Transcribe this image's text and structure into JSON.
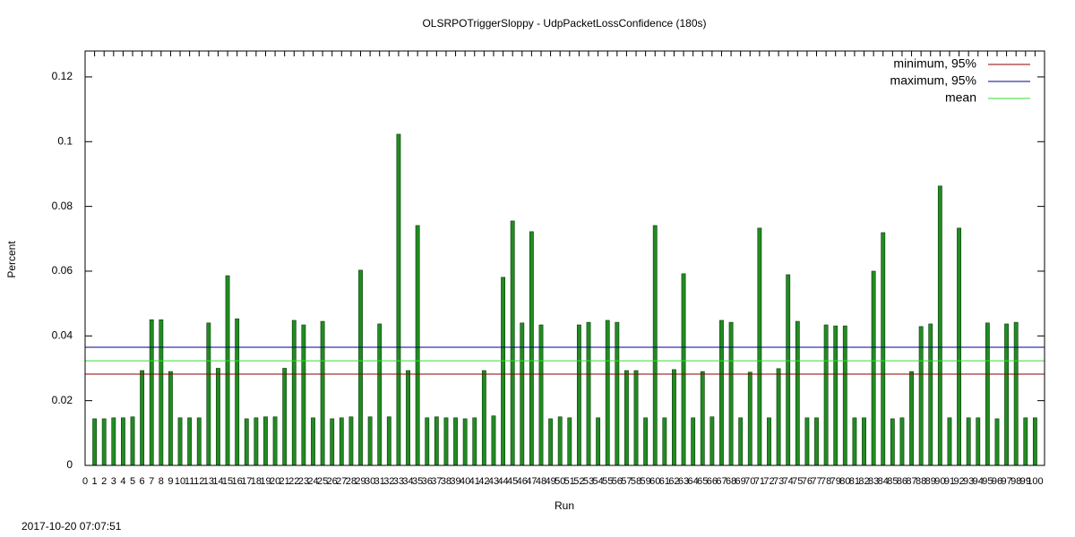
{
  "chart_data": {
    "type": "bar",
    "title": "OLSRPOTriggerSloppy - UdpPacketLossConfidence (180s)",
    "xlabel": "Run",
    "ylabel": "Percent",
    "footer": "2017-10-20 07:07:51",
    "color": "#228b22",
    "edgecolor": "#0b3d0b",
    "x": [
      1,
      2,
      3,
      4,
      5,
      6,
      7,
      8,
      9,
      10,
      11,
      12,
      13,
      14,
      15,
      16,
      17,
      18,
      19,
      20,
      21,
      22,
      23,
      24,
      25,
      26,
      27,
      28,
      29,
      30,
      31,
      32,
      33,
      34,
      35,
      36,
      37,
      38,
      39,
      40,
      41,
      42,
      43,
      44,
      45,
      46,
      47,
      48,
      49,
      50,
      51,
      52,
      53,
      54,
      55,
      56,
      57,
      58,
      59,
      60,
      61,
      62,
      63,
      64,
      65,
      66,
      67,
      68,
      69,
      70,
      71,
      72,
      73,
      74,
      75,
      76,
      77,
      78,
      79,
      80,
      81,
      82,
      83,
      84,
      85,
      86,
      87,
      88,
      89,
      90,
      91,
      92,
      93,
      94,
      95,
      96,
      97,
      98,
      99,
      100
    ],
    "values": [
      0.0144,
      0.0144,
      0.0147,
      0.0147,
      0.015,
      0.0293,
      0.045,
      0.045,
      0.029,
      0.0147,
      0.0147,
      0.0147,
      0.044,
      0.03,
      0.0586,
      0.0453,
      0.0144,
      0.0147,
      0.015,
      0.015,
      0.03,
      0.0448,
      0.0434,
      0.0147,
      0.0445,
      0.0144,
      0.0147,
      0.015,
      0.0603,
      0.015,
      0.0437,
      0.015,
      0.1023,
      0.0293,
      0.0741,
      0.0147,
      0.015,
      0.0147,
      0.0147,
      0.0144,
      0.0147,
      0.0293,
      0.0153,
      0.0581,
      0.0755,
      0.044,
      0.0722,
      0.0434,
      0.0144,
      0.015,
      0.0147,
      0.0434,
      0.0442,
      0.0147,
      0.0448,
      0.0442,
      0.0293,
      0.0293,
      0.0147,
      0.0741,
      0.0147,
      0.0296,
      0.0592,
      0.0147,
      0.029,
      0.015,
      0.0448,
      0.0442,
      0.0147,
      0.0288,
      0.0733,
      0.0147,
      0.0299,
      0.0589,
      0.0445,
      0.0147,
      0.0147,
      0.0434,
      0.0431,
      0.0431,
      0.0147,
      0.0147,
      0.06,
      0.0719,
      0.0144,
      0.0147,
      0.029,
      0.0429,
      0.0437,
      0.0863,
      0.0147,
      0.0733,
      0.0147,
      0.0147,
      0.044,
      0.0144,
      0.0437,
      0.0442,
      0.0147,
      0.0147
    ],
    "lines": [
      {
        "name": "minimum, 95%",
        "color": "#8b0000",
        "value": 0.0282
      },
      {
        "name": "maximum, 95%",
        "color": "#00008b",
        "value": 0.0365
      },
      {
        "name": "mean",
        "color": "#33dd33",
        "value": 0.0323
      }
    ],
    "legend": "upper right",
    "xlim": [
      0,
      101
    ],
    "ylim": [
      0,
      0.128
    ],
    "xticks": [
      0,
      1,
      2,
      3,
      4,
      5,
      6,
      7,
      8,
      9,
      10,
      11,
      12,
      13,
      14,
      15,
      16,
      17,
      18,
      19,
      20,
      21,
      22,
      23,
      24,
      25,
      26,
      27,
      28,
      29,
      30,
      31,
      32,
      33,
      34,
      35,
      36,
      37,
      38,
      39,
      40,
      41,
      42,
      43,
      44,
      45,
      46,
      47,
      48,
      49,
      50,
      51,
      52,
      53,
      54,
      55,
      56,
      57,
      58,
      59,
      60,
      61,
      62,
      63,
      64,
      65,
      66,
      67,
      68,
      69,
      70,
      71,
      72,
      73,
      74,
      75,
      76,
      77,
      78,
      79,
      80,
      81,
      82,
      83,
      84,
      85,
      86,
      87,
      88,
      89,
      90,
      91,
      92,
      93,
      94,
      95,
      96,
      97,
      98,
      99,
      100
    ],
    "yticks": [
      0,
      0.02,
      0.04,
      0.06,
      0.08,
      0.1,
      0.12
    ]
  }
}
